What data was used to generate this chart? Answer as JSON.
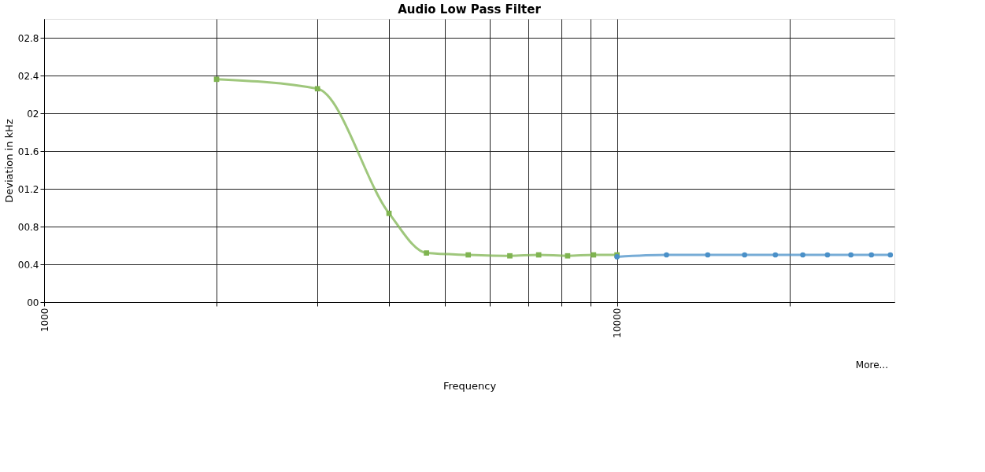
{
  "chart_data": {
    "type": "line",
    "title": "Audio Low Pass Filter",
    "xlabel": "Frequency",
    "ylabel": "Deviation in kHz",
    "log": "x",
    "grid": true,
    "line_style": "solid",
    "xlim": [
      1000,
      30500
    ],
    "ylim": [
      0,
      3.0
    ],
    "xticks": [
      1000,
      {
        "value": 2000,
        "label": null
      },
      {
        "value": 3000,
        "label": null
      },
      {
        "value": 4000,
        "label": null
      },
      {
        "value": 5000,
        "label": null
      },
      {
        "value": 6000,
        "label": null
      },
      {
        "value": 7000,
        "label": null
      },
      {
        "value": 8000,
        "label": null
      },
      {
        "value": 9000,
        "label": null
      },
      10000,
      {
        "value": 20000,
        "label": null
      }
    ],
    "yticks": [
      {
        "value": 0,
        "label": "00"
      },
      {
        "value": 0.4,
        "label": "00.4"
      },
      {
        "value": 0.8,
        "label": "00.8"
      },
      {
        "value": 1.2,
        "label": "01.2"
      },
      {
        "value": 1.6,
        "label": "01.6"
      },
      {
        "value": 2,
        "label": "02"
      },
      {
        "value": 2.4,
        "label": "02.4"
      },
      {
        "value": 2.8,
        "label": "02.8"
      }
    ],
    "annotations": [
      "More..."
    ],
    "series": [
      {
        "color": "#7fb450",
        "marker": "square",
        "x": [
          2000,
          3000,
          4000,
          4650,
          5500,
          6500,
          7300,
          8200,
          9100,
          10000
        ],
        "values": [
          2.36,
          2.26,
          0.94,
          0.52,
          0.5,
          0.49,
          0.5,
          0.49,
          0.5,
          0.5
        ]
      },
      {
        "color": "#4a90c8",
        "marker": "circle",
        "x": [
          10000,
          12200,
          14400,
          16700,
          18900,
          21100,
          23300,
          25600,
          27800,
          30000
        ],
        "values": [
          0.48,
          0.5,
          0.5,
          0.5,
          0.5,
          0.5,
          0.5,
          0.5,
          0.5,
          0.5
        ]
      }
    ]
  }
}
